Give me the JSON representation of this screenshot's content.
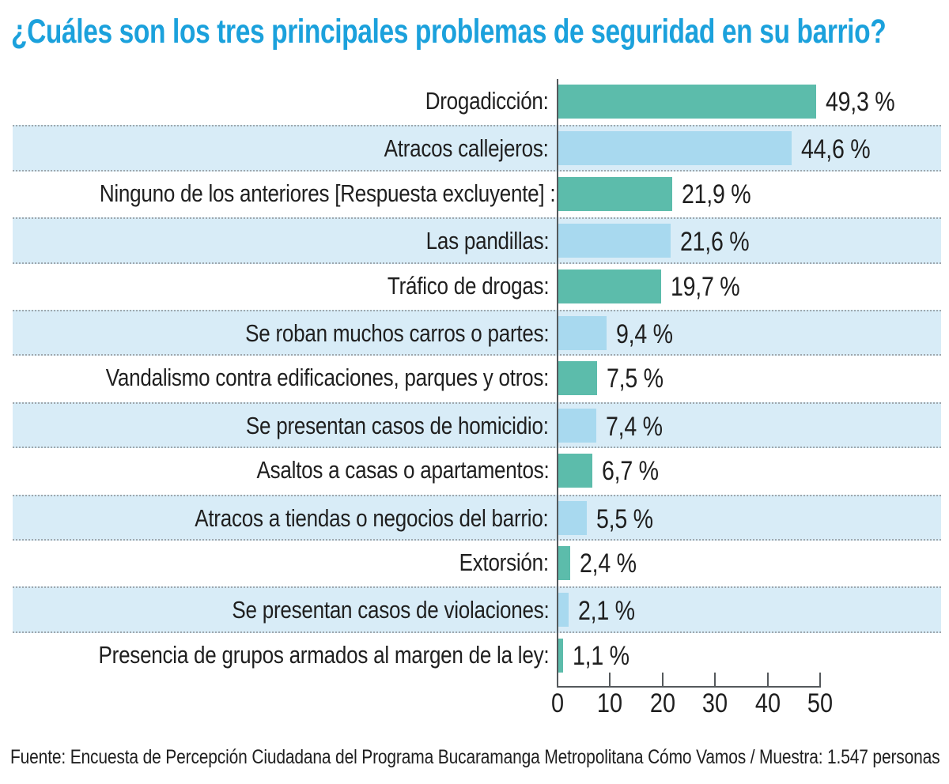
{
  "title": {
    "text": "¿Cuáles son los tres principales problemas de seguridad en su barrio?",
    "color": "#1ba1dc"
  },
  "chart_data": {
    "type": "bar",
    "orientation": "horizontal",
    "title": "¿Cuáles son los tres principales problemas de seguridad en su barrio?",
    "categories": [
      "Drogadicción:",
      "Atracos callejeros:",
      "Ninguno de los anteriores [Respuesta excluyente] :",
      "Las pandillas:",
      "Tráfico de drogas:",
      "Se roban muchos carros o partes:",
      "Vandalismo contra edificaciones, parques y otros:",
      "Se presentan casos de homicidio:",
      "Asaltos a casas o apartamentos:",
      "Atracos a tiendas o negocios del barrio:",
      "Extorsión:",
      "Se presentan casos de violaciones:",
      "Presencia de grupos armados al margen de la ley:"
    ],
    "values": [
      49.3,
      44.6,
      21.9,
      21.6,
      19.7,
      9.4,
      7.5,
      7.4,
      6.7,
      5.5,
      2.4,
      2.1,
      1.1
    ],
    "value_labels": [
      "49,3 %",
      "44,6 %",
      "21,9 %",
      "21,6 %",
      "19,7 %",
      "9,4 %",
      "7,5 %",
      "7,4 %",
      "6,7 %",
      "5,5 %",
      "2,4 %",
      "2,1 %",
      "1,1 %"
    ],
    "xlim": [
      0,
      50
    ],
    "x_ticks": [
      0,
      10,
      20,
      30,
      40,
      50
    ],
    "x_tick_labels": [
      "0",
      "10",
      "20",
      "30",
      "40",
      "50"
    ],
    "xlabel": "",
    "ylabel": "",
    "grid": false,
    "legend": "none",
    "colors": {
      "bar_odd_teal": "#5cbcab",
      "bar_even_blue": "#a8d9ef",
      "row_band_blue": "#d8ecf7",
      "axis": "#55595c",
      "text": "#1f1f1f"
    }
  },
  "source": {
    "text": "Fuente: Encuesta de Percepción Ciudadana del Programa Bucaramanga Metropolitana Cómo Vamos / Muestra: 1.547 personas"
  }
}
